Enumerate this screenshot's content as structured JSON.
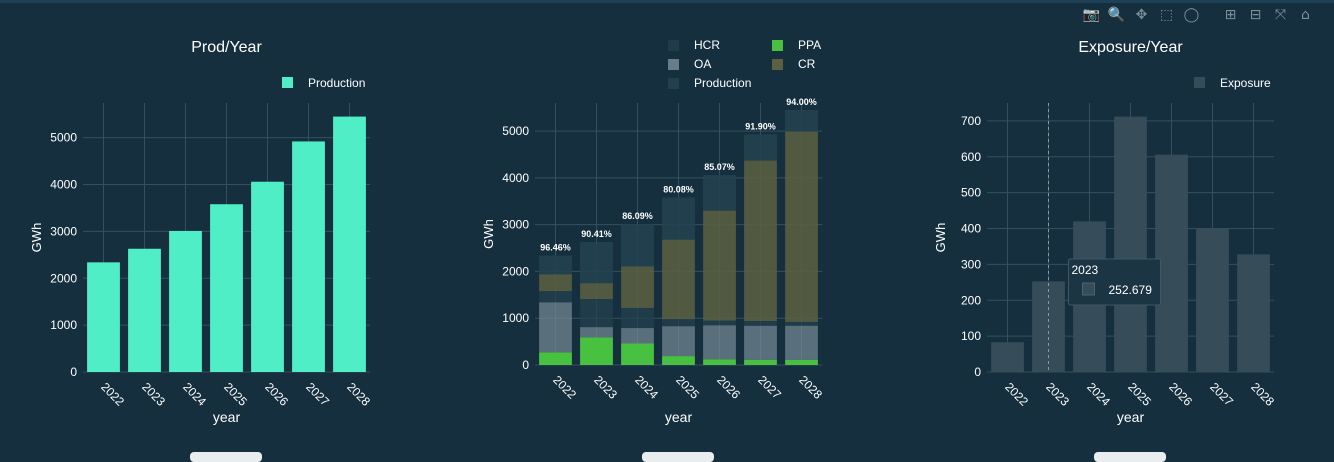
{
  "colors": {
    "background": "#152f3f",
    "grid": "#34505f",
    "axis_text": "#ffffff",
    "production": "#50eec6",
    "ppa": "#48c040",
    "hcr": "#24414f",
    "oa": "#728591",
    "cr": "#5c6041",
    "exposure": "#364c58"
  },
  "modebar": {
    "buttons": [
      "camera-icon",
      "zoom-icon",
      "pan-icon",
      "box-select-icon",
      "lasso-icon",
      "zoom-in-icon",
      "zoom-out-icon",
      "autoscale-icon",
      "reset-axes-icon"
    ],
    "glyphs": [
      "📷",
      "🔍",
      "✥",
      "⬚",
      "◯",
      "⊞",
      "⊟",
      "⤧",
      "⌂"
    ]
  },
  "chart_data": [
    {
      "type": "bar",
      "title": "Prod/Year",
      "xlabel": "year",
      "ylabel": "GWh",
      "categories": [
        "2022",
        "2023",
        "2024",
        "2025",
        "2026",
        "2027",
        "2028"
      ],
      "series": [
        {
          "name": "Production",
          "values": [
            2340,
            2630,
            3010,
            3580,
            4060,
            4920,
            5450
          ]
        }
      ],
      "ylim": [
        0,
        5740
      ],
      "yticks": [
        "0",
        "1000",
        "2000",
        "3000",
        "4000",
        "5000"
      ],
      "legend": "top-right",
      "grid": true
    },
    {
      "type": "bar",
      "title": "",
      "xlabel": "year",
      "ylabel": "GWh",
      "barmode": "stack",
      "categories": [
        "2022",
        "2023",
        "2024",
        "2025",
        "2026",
        "2027",
        "2028"
      ],
      "series": [
        {
          "name": "PPA",
          "values": [
            270,
            590,
            460,
            190,
            120,
            110,
            110
          ]
        },
        {
          "name": "OA",
          "values": [
            1070,
            220,
            330,
            640,
            730,
            730,
            730
          ]
        },
        {
          "name": "HCR",
          "values": [
            240,
            600,
            430,
            150,
            100,
            100,
            80
          ]
        },
        {
          "name": "CR",
          "values": [
            360,
            340,
            890,
            1700,
            2350,
            3430,
            4070
          ]
        },
        {
          "name": "Production",
          "values": [
            400,
            880,
            900,
            900,
            760,
            560,
            460
          ]
        }
      ],
      "annotations": [
        "96.46%",
        "90.41%",
        "86.09%",
        "80.08%",
        "85.07%",
        "91.90%",
        "94.00%"
      ],
      "ylim": [
        0,
        5600
      ],
      "yticks": [
        "0",
        "1000",
        "2000",
        "3000",
        "4000",
        "5000"
      ],
      "legend": "top",
      "grid": true
    },
    {
      "type": "bar",
      "title": "Exposure/Year",
      "xlabel": "year",
      "ylabel": "GWh",
      "categories": [
        "2022",
        "2023",
        "2024",
        "2025",
        "2026",
        "2027",
        "2028"
      ],
      "series": [
        {
          "name": "Exposure",
          "values": [
            83,
            252.679,
            420,
            712,
            606,
            400,
            328
          ]
        }
      ],
      "ylim": [
        0,
        750
      ],
      "yticks": [
        "0",
        "100",
        "200",
        "300",
        "400",
        "500",
        "600",
        "700"
      ],
      "legend": "top-right",
      "grid": true,
      "hover": {
        "category": "2023",
        "label": "2023",
        "value": "252.679"
      }
    }
  ]
}
